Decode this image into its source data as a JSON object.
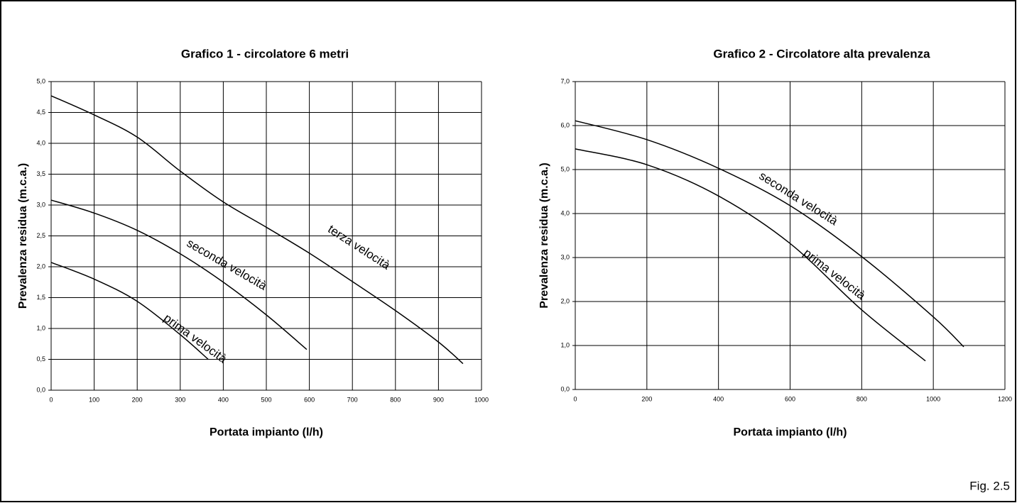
{
  "chart_data": [
    {
      "type": "line",
      "title": "Grafico 1 - circolatore 6 metri",
      "x_label": "Portata impianto (l/h)",
      "y_label": "Prevalenza residua (m.c.a.)",
      "xlim": [
        0,
        1000
      ],
      "xticks": [
        0,
        100,
        200,
        300,
        400,
        500,
        600,
        700,
        800,
        900,
        1000
      ],
      "ylim": [
        0,
        5
      ],
      "yticks": [
        {
          "value": 0,
          "label": "0,0"
        },
        {
          "value": 0.5,
          "label": "0,5"
        },
        {
          "value": 1,
          "label": "1,0"
        },
        {
          "value": 1.5,
          "label": "1,5"
        },
        {
          "value": 2,
          "label": "2,0"
        },
        {
          "value": 2.5,
          "label": "2,5"
        },
        {
          "value": 3,
          "label": "3,0"
        },
        {
          "value": 3.5,
          "label": "3,5"
        },
        {
          "value": 4,
          "label": "4,0"
        },
        {
          "value": 4.5,
          "label": "4,5"
        },
        {
          "value": 5,
          "label": "5,0"
        }
      ],
      "grid": true,
      "series": [
        {
          "name": "prima velocità",
          "color": "#000000",
          "x": [
            0,
            100,
            200,
            300,
            365
          ],
          "values": [
            2.07,
            1.8,
            1.44,
            0.9,
            0.5
          ]
        },
        {
          "name": "seconda velocità",
          "color": "#000000",
          "x": [
            0,
            100,
            200,
            300,
            400,
            500,
            594
          ],
          "values": [
            3.08,
            2.87,
            2.59,
            2.21,
            1.75,
            1.22,
            0.66
          ]
        },
        {
          "name": "terza velocità",
          "color": "#000000",
          "x": [
            0,
            100,
            200,
            300,
            400,
            500,
            600,
            700,
            800,
            900,
            957
          ],
          "values": [
            4.77,
            4.46,
            4.1,
            3.55,
            3.05,
            2.64,
            2.22,
            1.76,
            1.29,
            0.78,
            0.43
          ]
        }
      ]
    },
    {
      "type": "line",
      "title": "Grafico 2 - Circolatore alta prevalenza",
      "x_label": "Portata impianto (l/h)",
      "y_label": "Prevalenza residua (m.c.a.)",
      "xlim": [
        0,
        1200
      ],
      "xticks": [
        0,
        200,
        400,
        600,
        800,
        1000,
        1200
      ],
      "ylim": [
        0,
        7
      ],
      "yticks": [
        {
          "value": 0,
          "label": "0,0"
        },
        {
          "value": 1,
          "label": "1,0"
        },
        {
          "value": 2,
          "label": "2,0"
        },
        {
          "value": 3,
          "label": "3,0"
        },
        {
          "value": 4,
          "label": "4,0"
        },
        {
          "value": 5,
          "label": "5,0"
        },
        {
          "value": 6,
          "label": "6,0"
        },
        {
          "value": 7,
          "label": "7,0"
        }
      ],
      "grid": true,
      "series": [
        {
          "name": "prima velocità",
          "color": "#000000",
          "x": [
            0,
            200,
            400,
            600,
            800,
            978
          ],
          "values": [
            5.47,
            5.11,
            4.4,
            3.32,
            1.81,
            0.65
          ]
        },
        {
          "name": "seconda velocità",
          "color": "#000000",
          "x": [
            0,
            200,
            400,
            600,
            800,
            1000,
            1085
          ],
          "values": [
            6.11,
            5.68,
            5.03,
            4.18,
            3.02,
            1.65,
            0.97
          ]
        }
      ]
    }
  ],
  "figure_label": "Fig. 2.5"
}
